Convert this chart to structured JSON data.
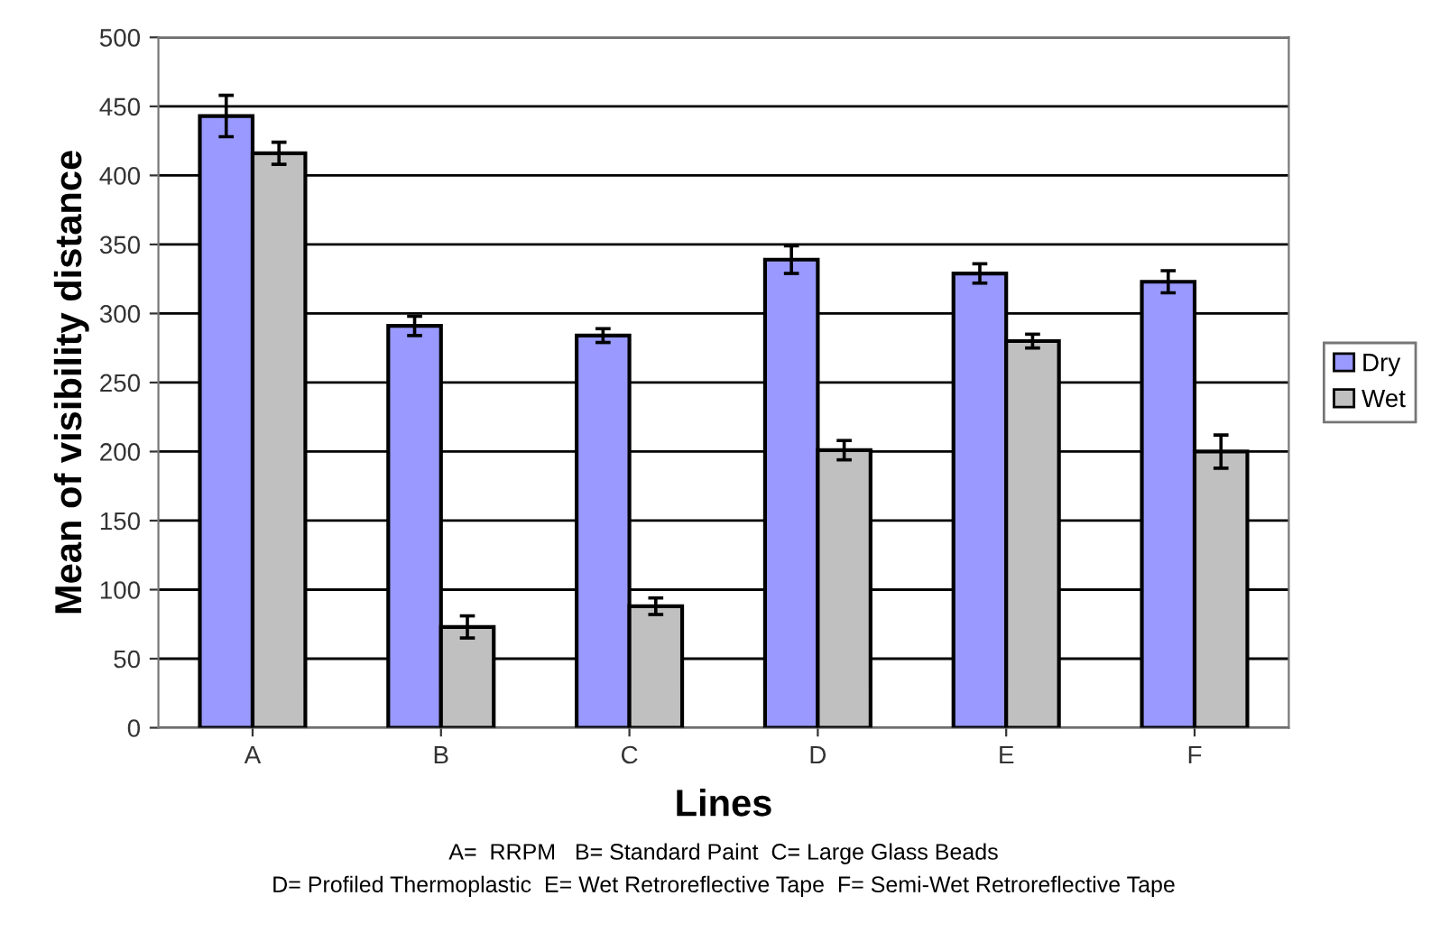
{
  "chart_data": {
    "type": "bar",
    "xlabel": "Lines",
    "ylabel": "Mean of visibility distance",
    "categories": [
      "A",
      "B",
      "C",
      "D",
      "E",
      "F"
    ],
    "series": [
      {
        "name": "Dry",
        "color": "#9999ff",
        "values": [
          443,
          291,
          284,
          339,
          329,
          323
        ],
        "errors": [
          15,
          7,
          5,
          10,
          7,
          8
        ]
      },
      {
        "name": "Wet",
        "color": "#c0c0c0",
        "values": [
          416,
          73,
          88,
          201,
          280,
          200
        ],
        "errors": [
          8,
          8,
          6,
          7,
          5,
          12
        ]
      }
    ],
    "ylim": [
      0,
      500
    ],
    "yticks": [
      0,
      50,
      100,
      150,
      200,
      250,
      300,
      350,
      400,
      450,
      500
    ],
    "grid": "y",
    "legend": "right",
    "annotations": [
      "A=  RRPM   B= Standard Paint  C= Large Glass Beads",
      "D= Profiled Thermoplastic  E= Wet Retroreflective Tape  F= Semi-Wet Retroreflective Tape"
    ]
  }
}
